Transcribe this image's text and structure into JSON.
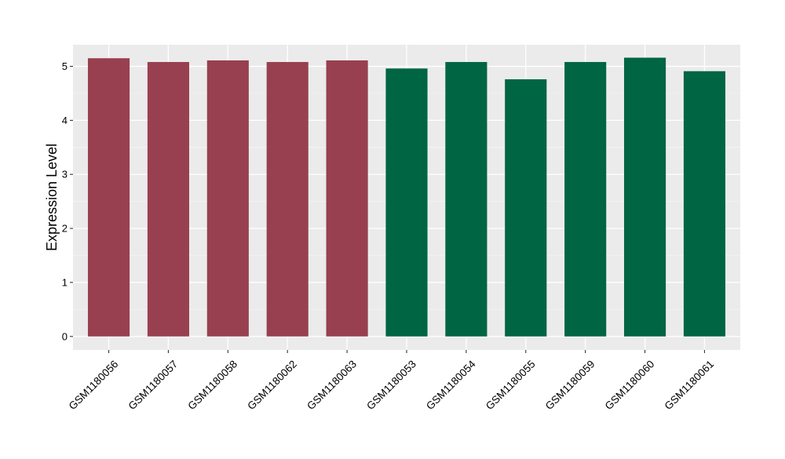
{
  "chart_data": {
    "type": "bar",
    "title": "",
    "xlabel": "",
    "ylabel": "Expression Level",
    "categories": [
      "GSM1180056",
      "GSM1180057",
      "GSM1180058",
      "GSM1180062",
      "GSM1180063",
      "GSM1180053",
      "GSM1180054",
      "GSM1180055",
      "GSM1180059",
      "GSM1180060",
      "GSM1180061"
    ],
    "values": [
      5.15,
      5.08,
      5.11,
      5.08,
      5.11,
      4.96,
      5.08,
      4.76,
      5.08,
      5.16,
      4.91
    ],
    "bar_colors": [
      "#98404F",
      "#98404F",
      "#98404F",
      "#98404F",
      "#98404F",
      "#006543",
      "#006543",
      "#006543",
      "#006543",
      "#006543",
      "#006543"
    ],
    "ylim": [
      -0.25,
      5.4
    ],
    "yticks": [
      0,
      1,
      2,
      3,
      4,
      5
    ],
    "grid": true,
    "legend": false,
    "colors": {
      "panel_background": "#EBEBEB",
      "grid_major": "#FFFFFF",
      "grid_minor": "#F5F5F5",
      "tick_color": "#333333",
      "text_color": "#000000"
    }
  }
}
